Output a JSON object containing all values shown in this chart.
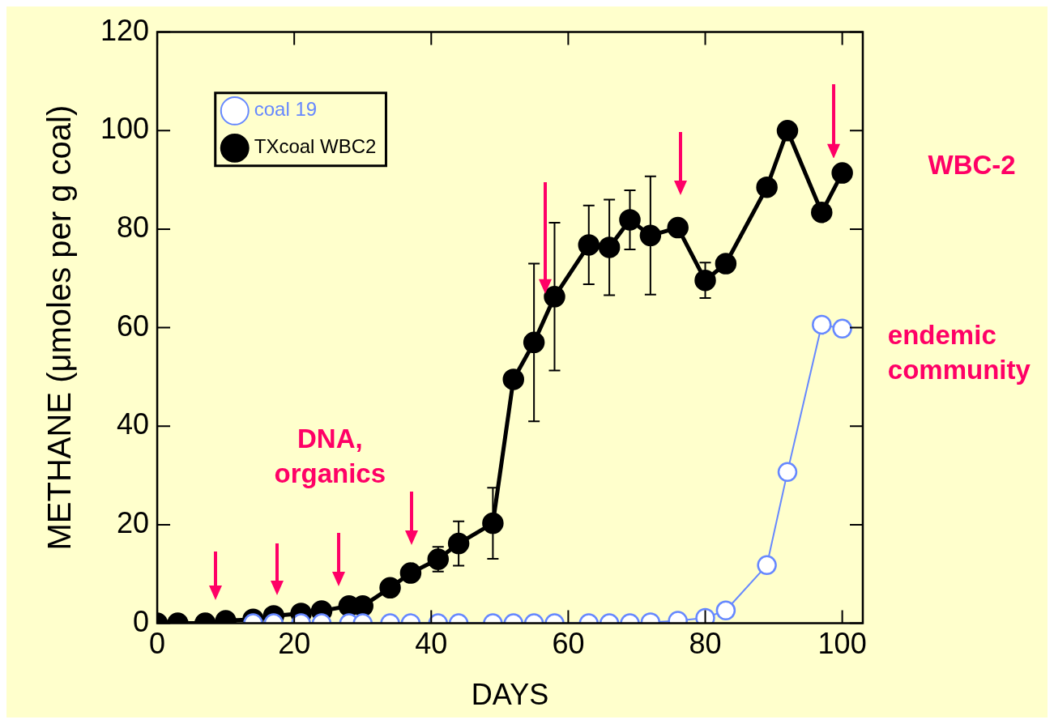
{
  "chart_data": {
    "type": "line",
    "xlabel": "DAYS",
    "ylabel": "METHANE (μmoles per g coal)",
    "xlim": [
      0,
      103
    ],
    "xticks": [
      0,
      20,
      40,
      60,
      80,
      100
    ],
    "ylim": [
      0,
      120
    ],
    "yticks": [
      0,
      20,
      40,
      60,
      80,
      100,
      120
    ],
    "grid": false,
    "legend": "top left",
    "marker": "circle",
    "line_style": "solid",
    "series": [
      {
        "name": "coal 19",
        "color": "#6688ff",
        "x": [
          14,
          17,
          21,
          24,
          28,
          30,
          34,
          37,
          41,
          44,
          49,
          52,
          55,
          58,
          63,
          66,
          69,
          72,
          76,
          80,
          83,
          89,
          92,
          97,
          100
        ],
        "values": [
          0,
          0,
          0,
          0,
          0,
          0,
          0,
          0,
          0,
          0,
          0,
          0,
          0,
          0,
          0,
          0,
          0,
          0.2,
          0.5,
          1.1,
          2.6,
          11.8,
          30.7,
          60.6,
          59.8
        ]
      },
      {
        "name": "TXcoal WBC2",
        "color": "#000000",
        "x": [
          0,
          3,
          7,
          10,
          14,
          17,
          21,
          24,
          28,
          30,
          34,
          37,
          41,
          44,
          49,
          52,
          55,
          58,
          63,
          66,
          69,
          72,
          76,
          80,
          83,
          89,
          92,
          97,
          100
        ],
        "values": [
          0,
          0,
          0,
          0.5,
          0.8,
          1.5,
          2,
          2.5,
          3.5,
          3.5,
          7.2,
          10.2,
          13,
          16.2,
          20.3,
          49.5,
          57,
          66.3,
          76.8,
          76.3,
          81.9,
          78.7,
          80.3,
          69.6,
          73,
          88.5,
          100,
          83.4,
          91.4
        ],
        "errors": [
          null,
          null,
          null,
          null,
          null,
          null,
          null,
          null,
          null,
          null,
          null,
          null,
          2.5,
          4.5,
          7.2,
          null,
          16,
          15,
          8,
          9.7,
          6,
          12,
          null,
          3.6,
          null,
          null,
          null,
          null,
          null
        ]
      }
    ],
    "annotations": [
      "DNA, organics",
      "WBC-2",
      "endemic community"
    ]
  }
}
